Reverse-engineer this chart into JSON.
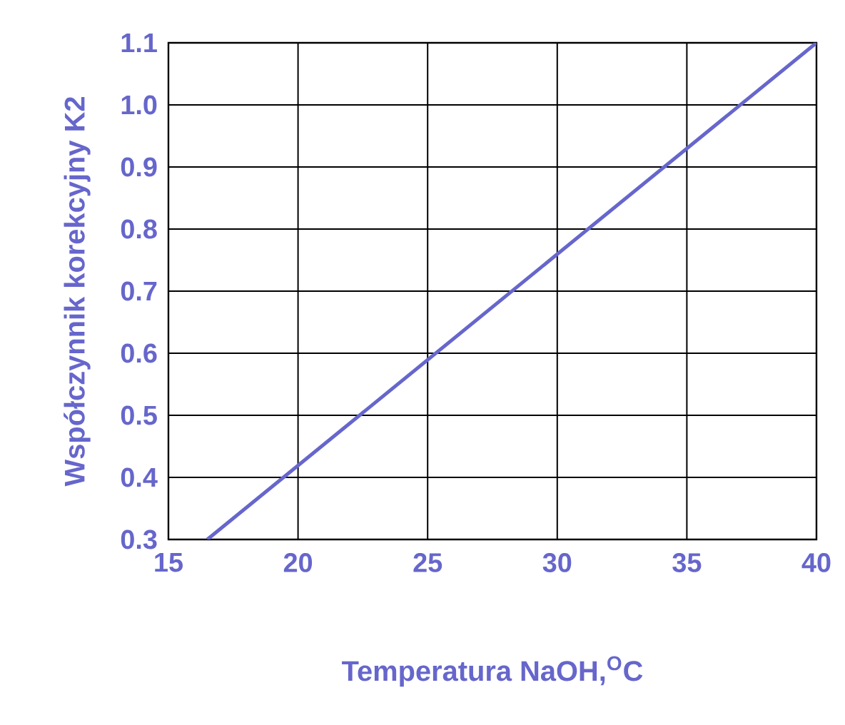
{
  "chart_data": {
    "type": "line",
    "xlabel": "Temperatura NaOH,$^{O}$C",
    "ylabel": "Współczynnik korekcyjny K2",
    "series": [
      {
        "color": "#6666cc",
        "x": [
          16.5,
          40
        ],
        "values": [
          0.3,
          1.1
        ]
      }
    ],
    "xlim": [
      15,
      40
    ],
    "ylim": [
      0.3,
      1.1
    ],
    "xticks": [
      15,
      20,
      25,
      30,
      35,
      40
    ],
    "yticks": [
      {
        "value": 0.3,
        "label": "0.3"
      },
      {
        "value": 0.4,
        "label": "0.4"
      },
      {
        "value": 0.5,
        "label": "0.5"
      },
      {
        "value": 0.6,
        "label": "0.6"
      },
      {
        "value": 0.7,
        "label": "0.7"
      },
      {
        "value": 0.8,
        "label": "0.8"
      },
      {
        "value": 0.9,
        "label": "0.9"
      },
      {
        "value": 1.0,
        "label": "1.0"
      },
      {
        "value": 1.1,
        "label": "1.1"
      }
    ],
    "grid": true,
    "marker": "none",
    "line_style": "solid"
  }
}
